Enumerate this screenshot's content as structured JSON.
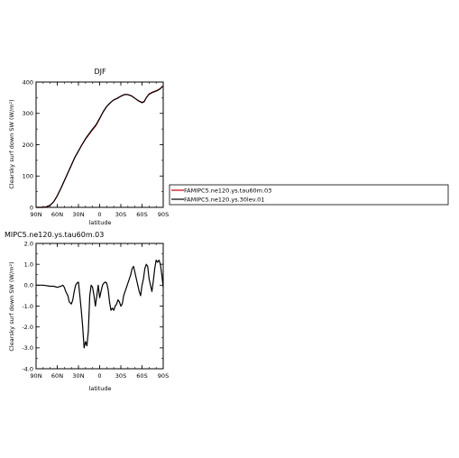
{
  "chart_data": [
    {
      "type": "line",
      "title": "DJF",
      "xlabel": "latitude",
      "ylabel": "Clearsky surf down SW (W/m²)",
      "xlim": [
        -90,
        90
      ],
      "ylim": [
        0,
        400
      ],
      "x_ticks": [
        -90,
        -60,
        -30,
        0,
        30,
        60,
        90
      ],
      "x_tick_labels": [
        "90N",
        "60N",
        "30N",
        "0",
        "30S",
        "60S",
        "90S"
      ],
      "y_ticks": [
        0,
        100,
        200,
        300,
        400
      ],
      "y_tick_labels": [
        "0",
        "100",
        "200",
        "300",
        "400"
      ],
      "legend": "right",
      "series": [
        {
          "name": "FAMIPC5.ne120.ys.tau60m.03",
          "color": "#cc0000",
          "x": [
            -90,
            -80,
            -75,
            -70,
            -65,
            -60,
            -55,
            -50,
            -45,
            -40,
            -35,
            -30,
            -25,
            -20,
            -15,
            -10,
            -5,
            0,
            5,
            10,
            15,
            20,
            25,
            30,
            35,
            40,
            45,
            50,
            55,
            60,
            63,
            66,
            70,
            75,
            80,
            85,
            90
          ],
          "y": [
            0,
            0,
            2,
            7,
            18,
            37,
            60,
            85,
            110,
            135,
            160,
            180,
            200,
            218,
            233,
            248,
            262,
            283,
            305,
            322,
            334,
            343,
            348,
            355,
            360,
            360,
            356,
            348,
            340,
            335,
            338,
            350,
            362,
            368,
            372,
            378,
            388
          ]
        },
        {
          "name": "FAMIPC5.ne120.ys.30lev.01",
          "color": "#000000",
          "x": [
            -90,
            -80,
            -75,
            -70,
            -65,
            -60,
            -55,
            -50,
            -45,
            -40,
            -35,
            -30,
            -25,
            -20,
            -15,
            -10,
            -5,
            0,
            5,
            10,
            15,
            20,
            25,
            30,
            35,
            40,
            45,
            50,
            55,
            60,
            63,
            66,
            70,
            75,
            80,
            85,
            90
          ],
          "y": [
            0,
            0,
            2,
            7,
            18,
            37,
            60,
            85,
            110,
            135,
            160,
            180,
            200,
            219,
            235,
            250,
            264,
            284,
            305,
            322,
            334,
            343,
            348,
            355,
            360,
            360,
            356,
            348,
            340,
            334,
            337,
            350,
            361,
            367,
            371,
            377,
            388
          ]
        }
      ]
    },
    {
      "type": "line",
      "title": "MIPC5.ne120.ys.tau60m.03",
      "xlabel": "latitude",
      "ylabel": "Clearsky surf down SW (W/m²)",
      "xlim": [
        -90,
        90
      ],
      "ylim": [
        -4.0,
        2.0
      ],
      "x_ticks": [
        -90,
        -60,
        -30,
        0,
        30,
        60,
        90
      ],
      "x_tick_labels": [
        "90N",
        "60N",
        "30N",
        "0",
        "30S",
        "60S",
        "90S"
      ],
      "y_ticks": [
        -4.0,
        -3.0,
        -2.0,
        -1.0,
        0.0,
        1.0,
        2.0
      ],
      "y_tick_labels": [
        "-4.0",
        "-3.0",
        "-2.0",
        "-1.0",
        "0.0",
        "1.0",
        "2.0"
      ],
      "series": [
        {
          "name": "",
          "color": "#000000",
          "x": [
            -90,
            -80,
            -70,
            -65,
            -60,
            -55,
            -52,
            -50,
            -48,
            -45,
            -43,
            -40,
            -38,
            -36,
            -34,
            -32,
            -30,
            -28,
            -26,
            -24,
            -22,
            -20,
            -18,
            -16,
            -14,
            -12,
            -10,
            -8,
            -6,
            -4,
            -2,
            0,
            2,
            4,
            6,
            8,
            10,
            12,
            14,
            16,
            18,
            20,
            22,
            24,
            26,
            28,
            30,
            32,
            34,
            36,
            38,
            40,
            42,
            44,
            46,
            48,
            50,
            52,
            54,
            56,
            58,
            60,
            62,
            64,
            66,
            68,
            70,
            72,
            74,
            76,
            78,
            80,
            82,
            84,
            86,
            88,
            90
          ],
          "y": [
            0.0,
            0.0,
            -0.05,
            -0.05,
            -0.1,
            -0.05,
            0.0,
            -0.1,
            -0.3,
            -0.5,
            -0.8,
            -0.9,
            -0.7,
            -0.3,
            0.0,
            0.1,
            0.15,
            -0.5,
            -1.2,
            -2.0,
            -3.0,
            -2.7,
            -2.9,
            -2.2,
            -0.5,
            0.0,
            -0.1,
            -0.5,
            -1.0,
            -0.5,
            0.0,
            -0.6,
            -0.3,
            0.0,
            0.1,
            0.15,
            0.1,
            -0.2,
            -0.8,
            -1.2,
            -1.1,
            -1.2,
            -1.0,
            -0.9,
            -0.7,
            -0.8,
            -1.0,
            -0.9,
            -0.5,
            -0.3,
            -0.1,
            0.1,
            0.3,
            0.5,
            0.8,
            0.9,
            0.6,
            0.3,
            0.0,
            -0.3,
            -0.5,
            0.0,
            0.3,
            0.8,
            1.0,
            0.9,
            0.3,
            0.0,
            -0.3,
            0.2,
            0.8,
            1.2,
            1.1,
            1.2,
            1.0,
            0.5,
            -0.1
          ]
        }
      ]
    }
  ]
}
